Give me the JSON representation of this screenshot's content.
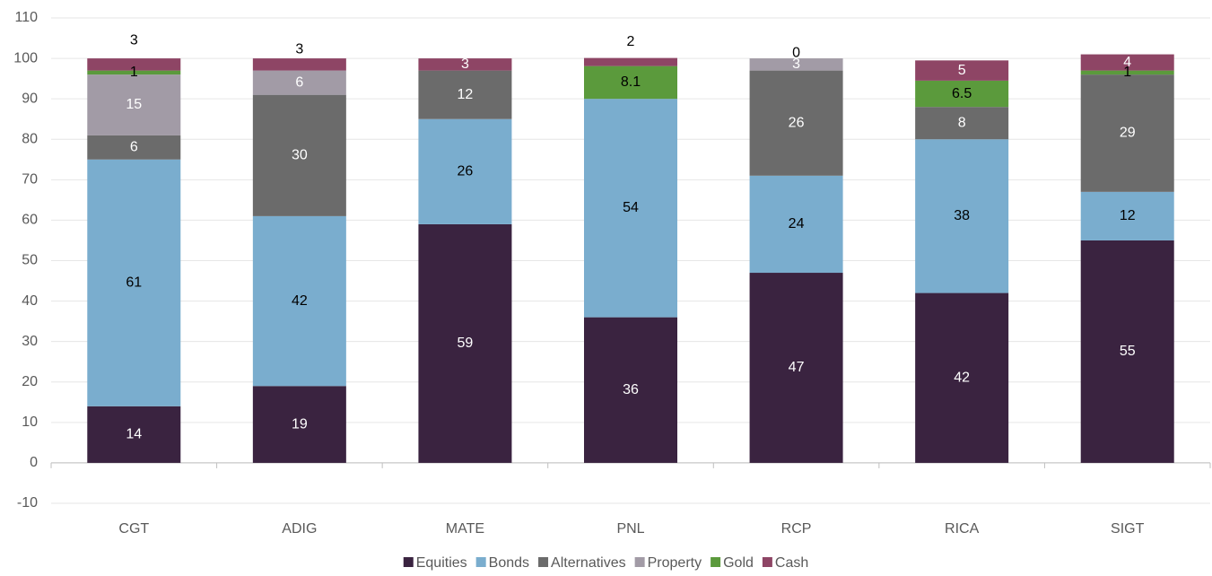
{
  "chart_data": {
    "type": "stacked_bar",
    "categories": [
      "CGT",
      "ADIG",
      "MATE",
      "PNL",
      "RCP",
      "RICA",
      "SIGT"
    ],
    "series": [
      {
        "name": "Equities",
        "color": "#3a2340",
        "values": [
          14,
          19,
          59,
          36,
          47,
          42,
          55
        ]
      },
      {
        "name": "Bonds",
        "color": "#7aadce",
        "values": [
          61,
          42,
          26,
          54,
          24,
          38,
          12
        ]
      },
      {
        "name": "Alternatives",
        "color": "#6b6b6b",
        "values": [
          6,
          30,
          12,
          null,
          26,
          8,
          29
        ]
      },
      {
        "name": "Property",
        "color": "#a29ba6",
        "values": [
          15,
          6,
          null,
          null,
          3,
          null,
          null
        ]
      },
      {
        "name": "Gold",
        "color": "#5b9a3c",
        "values": [
          1,
          null,
          null,
          8.1,
          null,
          6.5,
          1
        ]
      },
      {
        "name": "Cash",
        "color": "#8e4565",
        "values": [
          3,
          3,
          3,
          2,
          0,
          5,
          4
        ]
      }
    ],
    "ylim": [
      -10,
      110
    ],
    "yticks": [
      -10,
      0,
      10,
      20,
      30,
      40,
      50,
      60,
      70,
      80,
      90,
      100,
      110
    ],
    "grid": true,
    "legend": "bottom"
  }
}
